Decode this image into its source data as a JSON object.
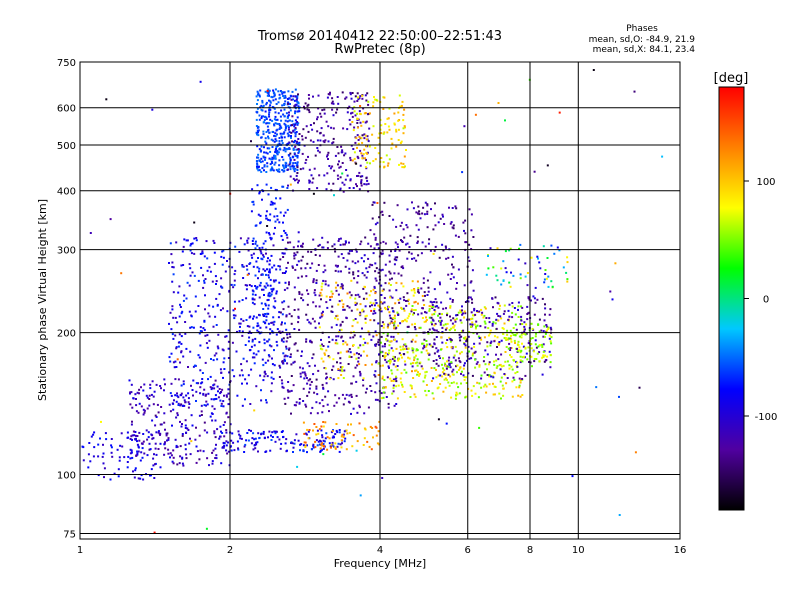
{
  "header": {
    "title_line1": "Tromsø 20140412 22:50:00–22:51:43",
    "title_line2": "RwPretec (8p)",
    "stats_title": "Phases",
    "stats_o": "mean, sd,O: -84.9, 21.9",
    "stats_x": "mean, sd,X:  84.1, 23.4"
  },
  "chart_data": {
    "type": "scatter",
    "xlabel": "Frequency [MHz]",
    "ylabel": "Stationary phase Virtual Height [km]",
    "x_scale": "log",
    "y_scale": "log",
    "xlim": [
      1,
      16
    ],
    "ylim": [
      73,
      750
    ],
    "x_ticks": [
      1,
      2,
      4,
      6,
      8,
      10,
      16
    ],
    "x_gridlines": [
      1,
      2,
      4,
      6,
      8,
      10,
      16
    ],
    "y_ticks": [
      75,
      100,
      200,
      300,
      400,
      500,
      600,
      750
    ],
    "y_gridlines": [
      75,
      100,
      200,
      300,
      400,
      500,
      600,
      750
    ],
    "grid": true,
    "colorbar": {
      "label": "[deg]",
      "range": [
        -180,
        180
      ],
      "ticks": [
        100,
        0,
        -100
      ],
      "stops": [
        "#000000",
        "#5000a0",
        "#0000ff",
        "#00c8ff",
        "#00ff00",
        "#ffff00",
        "#ff8000",
        "#ff0000"
      ]
    },
    "clusters": [
      {
        "f": [
          1.0,
          1.45
        ],
        "h": [
          98,
          125
        ],
        "phase": [
          -115,
          -70
        ],
        "n": 90
      },
      {
        "f": [
          1.25,
          2.0
        ],
        "h": [
          105,
          160
        ],
        "phase": [
          -140,
          -80
        ],
        "n": 260
      },
      {
        "f": [
          1.5,
          2.45
        ],
        "h": [
          140,
          320
        ],
        "phase": [
          -120,
          -60
        ],
        "n": 420
      },
      {
        "f": [
          1.9,
          3.4
        ],
        "h": [
          112,
          125
        ],
        "phase": [
          -115,
          -55
        ],
        "n": 160
      },
      {
        "f": [
          2.2,
          2.6
        ],
        "h": [
          170,
          420
        ],
        "phase": [
          -90,
          -60
        ],
        "n": 180
      },
      {
        "f": [
          2.25,
          2.75
        ],
        "h": [
          440,
          660
        ],
        "phase": [
          -75,
          -45
        ],
        "n": 420
      },
      {
        "f": [
          2.6,
          3.8
        ],
        "h": [
          400,
          650
        ],
        "phase": [
          -150,
          -100
        ],
        "n": 260
      },
      {
        "f": [
          3.5,
          4.5
        ],
        "h": [
          450,
          640
        ],
        "phase": [
          60,
          120
        ],
        "n": 120
      },
      {
        "f": [
          2.5,
          4.3
        ],
        "h": [
          135,
          320
        ],
        "phase": [
          -150,
          -95
        ],
        "n": 520
      },
      {
        "f": [
          3.8,
          6.2
        ],
        "h": [
          170,
          380
        ],
        "phase": [
          -150,
          -100
        ],
        "n": 320
      },
      {
        "f": [
          3.0,
          4.8
        ],
        "h": [
          160,
          260
        ],
        "phase": [
          60,
          130
        ],
        "n": 160
      },
      {
        "f": [
          4.0,
          7.8
        ],
        "h": [
          145,
          230
        ],
        "phase": [
          40,
          110
        ],
        "n": 420
      },
      {
        "f": [
          5.0,
          8.8
        ],
        "h": [
          160,
          240
        ],
        "phase": [
          -150,
          -90
        ],
        "n": 220
      },
      {
        "f": [
          7.0,
          8.8
        ],
        "h": [
          170,
          210
        ],
        "phase": [
          40,
          80
        ],
        "n": 90
      },
      {
        "f": [
          2.8,
          4.0
        ],
        "h": [
          113,
          130
        ],
        "phase": [
          90,
          150
        ],
        "n": 70
      },
      {
        "f": [
          6.5,
          9.5
        ],
        "h": [
          250,
          310
        ],
        "phase": [
          -120,
          100
        ],
        "n": 60
      },
      {
        "f": [
          1.0,
          16.0
        ],
        "h": [
          75,
          740
        ],
        "phase": [
          -180,
          180
        ],
        "n": 70
      }
    ]
  }
}
